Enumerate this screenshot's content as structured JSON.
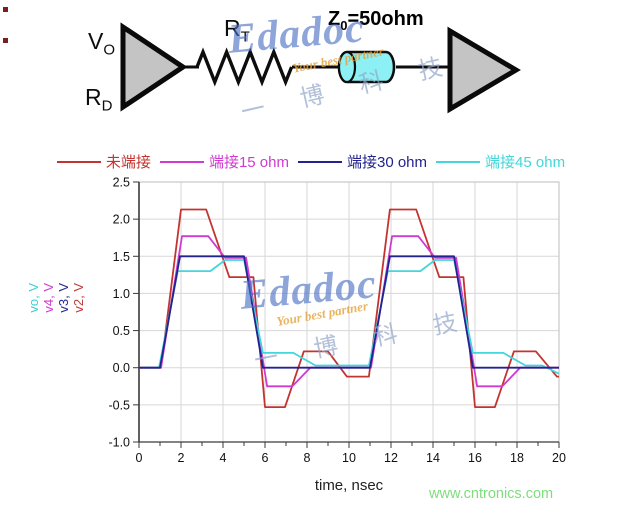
{
  "circuit": {
    "driver_signal": {
      "main": "V",
      "sub": "O"
    },
    "driver_impedance": {
      "main": "R",
      "sub": "D"
    },
    "series_resistor": {
      "main": "R",
      "sub": "T"
    },
    "line_impedance": {
      "main": "Z",
      "sub": "0",
      "rest": "=50ohm"
    }
  },
  "watermark": {
    "brand": "Edadoc",
    "tagline": "Your best partner",
    "cjk": "一 博 科 技"
  },
  "footer": {
    "website": "www.cntronics.com"
  },
  "chart_data": {
    "type": "line",
    "title": "",
    "xlabel": "time, nsec",
    "ylabel_note": "stacked colored y-axis labels, one per signal",
    "xlim": [
      0,
      20
    ],
    "ylim": [
      -1.0,
      2.5
    ],
    "x_major_step": 2,
    "x_minor_step": 1,
    "grid": true,
    "legend_position": "top",
    "xticks": [
      {
        "v": 0,
        "label": "0"
      },
      {
        "v": 2,
        "label": "2"
      },
      {
        "v": 4,
        "label": "4"
      },
      {
        "v": 6,
        "label": "6"
      },
      {
        "v": 8,
        "label": "8"
      },
      {
        "v": 10,
        "label": "10"
      },
      {
        "v": 12,
        "label": "12"
      },
      {
        "v": 14,
        "label": "14"
      },
      {
        "v": 16,
        "label": "16"
      },
      {
        "v": 18,
        "label": "18"
      },
      {
        "v": 20,
        "label": "20"
      }
    ],
    "yticks": [
      {
        "v": 2.5,
        "label": "2.5"
      },
      {
        "v": 2.0,
        "label": "2.0"
      },
      {
        "v": 1.5,
        "label": "1.5"
      },
      {
        "v": 1.0,
        "label": "1.0"
      },
      {
        "v": 0.5,
        "label": "0.5"
      },
      {
        "v": 0.0,
        "label": "0.0"
      },
      {
        "v": -0.5,
        "label": "-0.5"
      },
      {
        "v": -1.0,
        "label": "-1.0"
      }
    ],
    "ylabels": [
      {
        "text": "vo, V",
        "color": "#3ecfcf"
      },
      {
        "text": "v4, V",
        "color": "#cf3fcf"
      },
      {
        "text": "v3, V",
        "color": "#26268f"
      },
      {
        "text": "v2, V",
        "color": "#c23a3a"
      }
    ],
    "legend": [
      {
        "id": "unterminated",
        "label": "未端接",
        "color": "#c4342f"
      },
      {
        "id": "term-15ohm",
        "label": "端接15 ohm",
        "color": "#cf3ad2"
      },
      {
        "id": "term-30ohm",
        "label": "端接30 ohm",
        "color": "#23238f"
      },
      {
        "id": "term-45ohm",
        "label": "端接45 ohm",
        "color": "#43d6da"
      }
    ],
    "series": [
      {
        "id": "unterminated",
        "name": "未端接",
        "signal": "v2",
        "color": "#c4342f",
        "points": [
          [
            0,
            0
          ],
          [
            1.05,
            0
          ],
          [
            2.0,
            2.13
          ],
          [
            3.2,
            2.13
          ],
          [
            4.3,
            1.22
          ],
          [
            5.45,
            1.22
          ],
          [
            6.0,
            -0.53
          ],
          [
            6.95,
            -0.53
          ],
          [
            7.85,
            0.22
          ],
          [
            9.0,
            0.22
          ],
          [
            9.9,
            -0.12
          ],
          [
            10.95,
            -0.12
          ],
          [
            11.95,
            2.13
          ],
          [
            13.2,
            2.13
          ],
          [
            14.3,
            1.22
          ],
          [
            15.45,
            1.22
          ],
          [
            16.0,
            -0.53
          ],
          [
            16.95,
            -0.53
          ],
          [
            17.85,
            0.22
          ],
          [
            18.9,
            0.22
          ],
          [
            19.9,
            -0.12
          ],
          [
            20,
            -0.12
          ]
        ]
      },
      {
        "id": "term-15ohm",
        "name": "端接15 ohm",
        "signal": "v4",
        "color": "#cf3ad2",
        "points": [
          [
            0,
            0
          ],
          [
            1.05,
            0
          ],
          [
            2.05,
            1.77
          ],
          [
            3.3,
            1.77
          ],
          [
            4.1,
            1.48
          ],
          [
            5.1,
            1.48
          ],
          [
            6.1,
            -0.25
          ],
          [
            7.3,
            -0.25
          ],
          [
            8.15,
            0
          ],
          [
            11.05,
            0
          ],
          [
            12.05,
            1.77
          ],
          [
            13.3,
            1.77
          ],
          [
            14.1,
            1.48
          ],
          [
            15.1,
            1.48
          ],
          [
            16.1,
            -0.25
          ],
          [
            17.3,
            -0.25
          ],
          [
            18.15,
            0
          ],
          [
            20,
            0
          ]
        ]
      },
      {
        "id": "term-45ohm",
        "name": "端接45 ohm",
        "signal": "vo",
        "color": "#43d6da",
        "points": [
          [
            0,
            0
          ],
          [
            0.95,
            0
          ],
          [
            1.85,
            1.3
          ],
          [
            3.4,
            1.3
          ],
          [
            4.1,
            1.45
          ],
          [
            5.0,
            1.45
          ],
          [
            5.9,
            0.2
          ],
          [
            7.35,
            0.2
          ],
          [
            8.4,
            0.03
          ],
          [
            10.95,
            0.03
          ],
          [
            11.85,
            1.3
          ],
          [
            13.4,
            1.3
          ],
          [
            14.1,
            1.45
          ],
          [
            15.0,
            1.45
          ],
          [
            15.9,
            0.2
          ],
          [
            17.35,
            0.2
          ],
          [
            18.4,
            0.03
          ],
          [
            19.2,
            0.03
          ],
          [
            20,
            -0.08
          ]
        ]
      },
      {
        "id": "term-30ohm",
        "name": "端接30 ohm",
        "signal": "v3",
        "color": "#23238f",
        "points": [
          [
            0,
            0
          ],
          [
            1.0,
            0
          ],
          [
            1.95,
            1.5
          ],
          [
            5.0,
            1.5
          ],
          [
            5.9,
            0
          ],
          [
            11.0,
            0
          ],
          [
            11.95,
            1.5
          ],
          [
            15.0,
            1.5
          ],
          [
            15.9,
            0
          ],
          [
            20,
            0
          ]
        ]
      }
    ]
  }
}
